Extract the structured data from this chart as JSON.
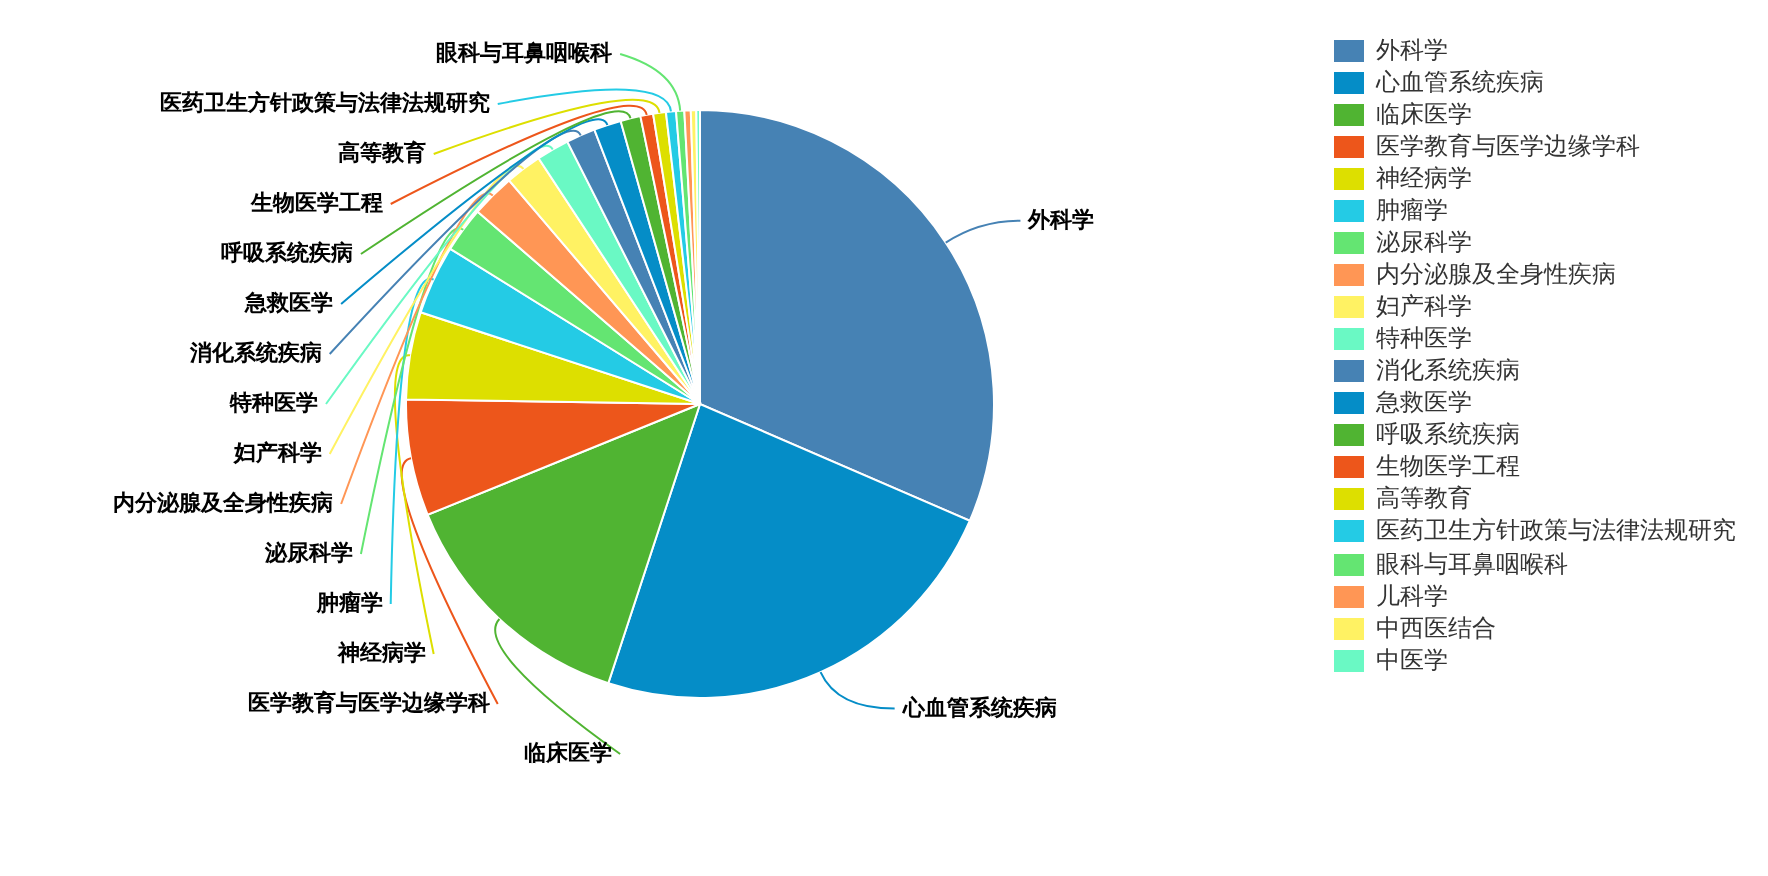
{
  "chart_data": {
    "type": "pie",
    "categories": [
      "外科学",
      "心血管系统疾病",
      "临床医学",
      "医学教育与医学边缘学科",
      "神经病学",
      "肿瘤学",
      "泌尿科学",
      "内分泌腺及全身性疾病",
      "妇产科学",
      "特种医学",
      "消化系统疾病",
      "急救医学",
      "呼吸系统疾病",
      "生物医学工程",
      "高等教育",
      "医药卫生方针政策与法律法规研究",
      "眼科与耳鼻咽喉科",
      "儿科学",
      "中西医结合",
      "中医学"
    ],
    "values": [
      31.5,
      23.55,
      13.8,
      6.4,
      4.8,
      3.8,
      2.5,
      2.4,
      2.0,
      1.8,
      1.6,
      1.5,
      1.1,
      0.7,
      0.7,
      0.55,
      0.45,
      0.35,
      0.3,
      0.2
    ],
    "colors": [
      "#4682b4",
      "#058dc7",
      "#50b432",
      "#ed561b",
      "#dddf00",
      "#24cbe5",
      "#64e572",
      "#ff9655",
      "#fff263",
      "#6af9c4",
      "#4682b4",
      "#058dc7",
      "#50b432",
      "#ed561b",
      "#dddf00",
      "#24cbe5",
      "#64e572",
      "#ff9655",
      "#fff263",
      "#6af9c4"
    ],
    "legend": "top right"
  }
}
